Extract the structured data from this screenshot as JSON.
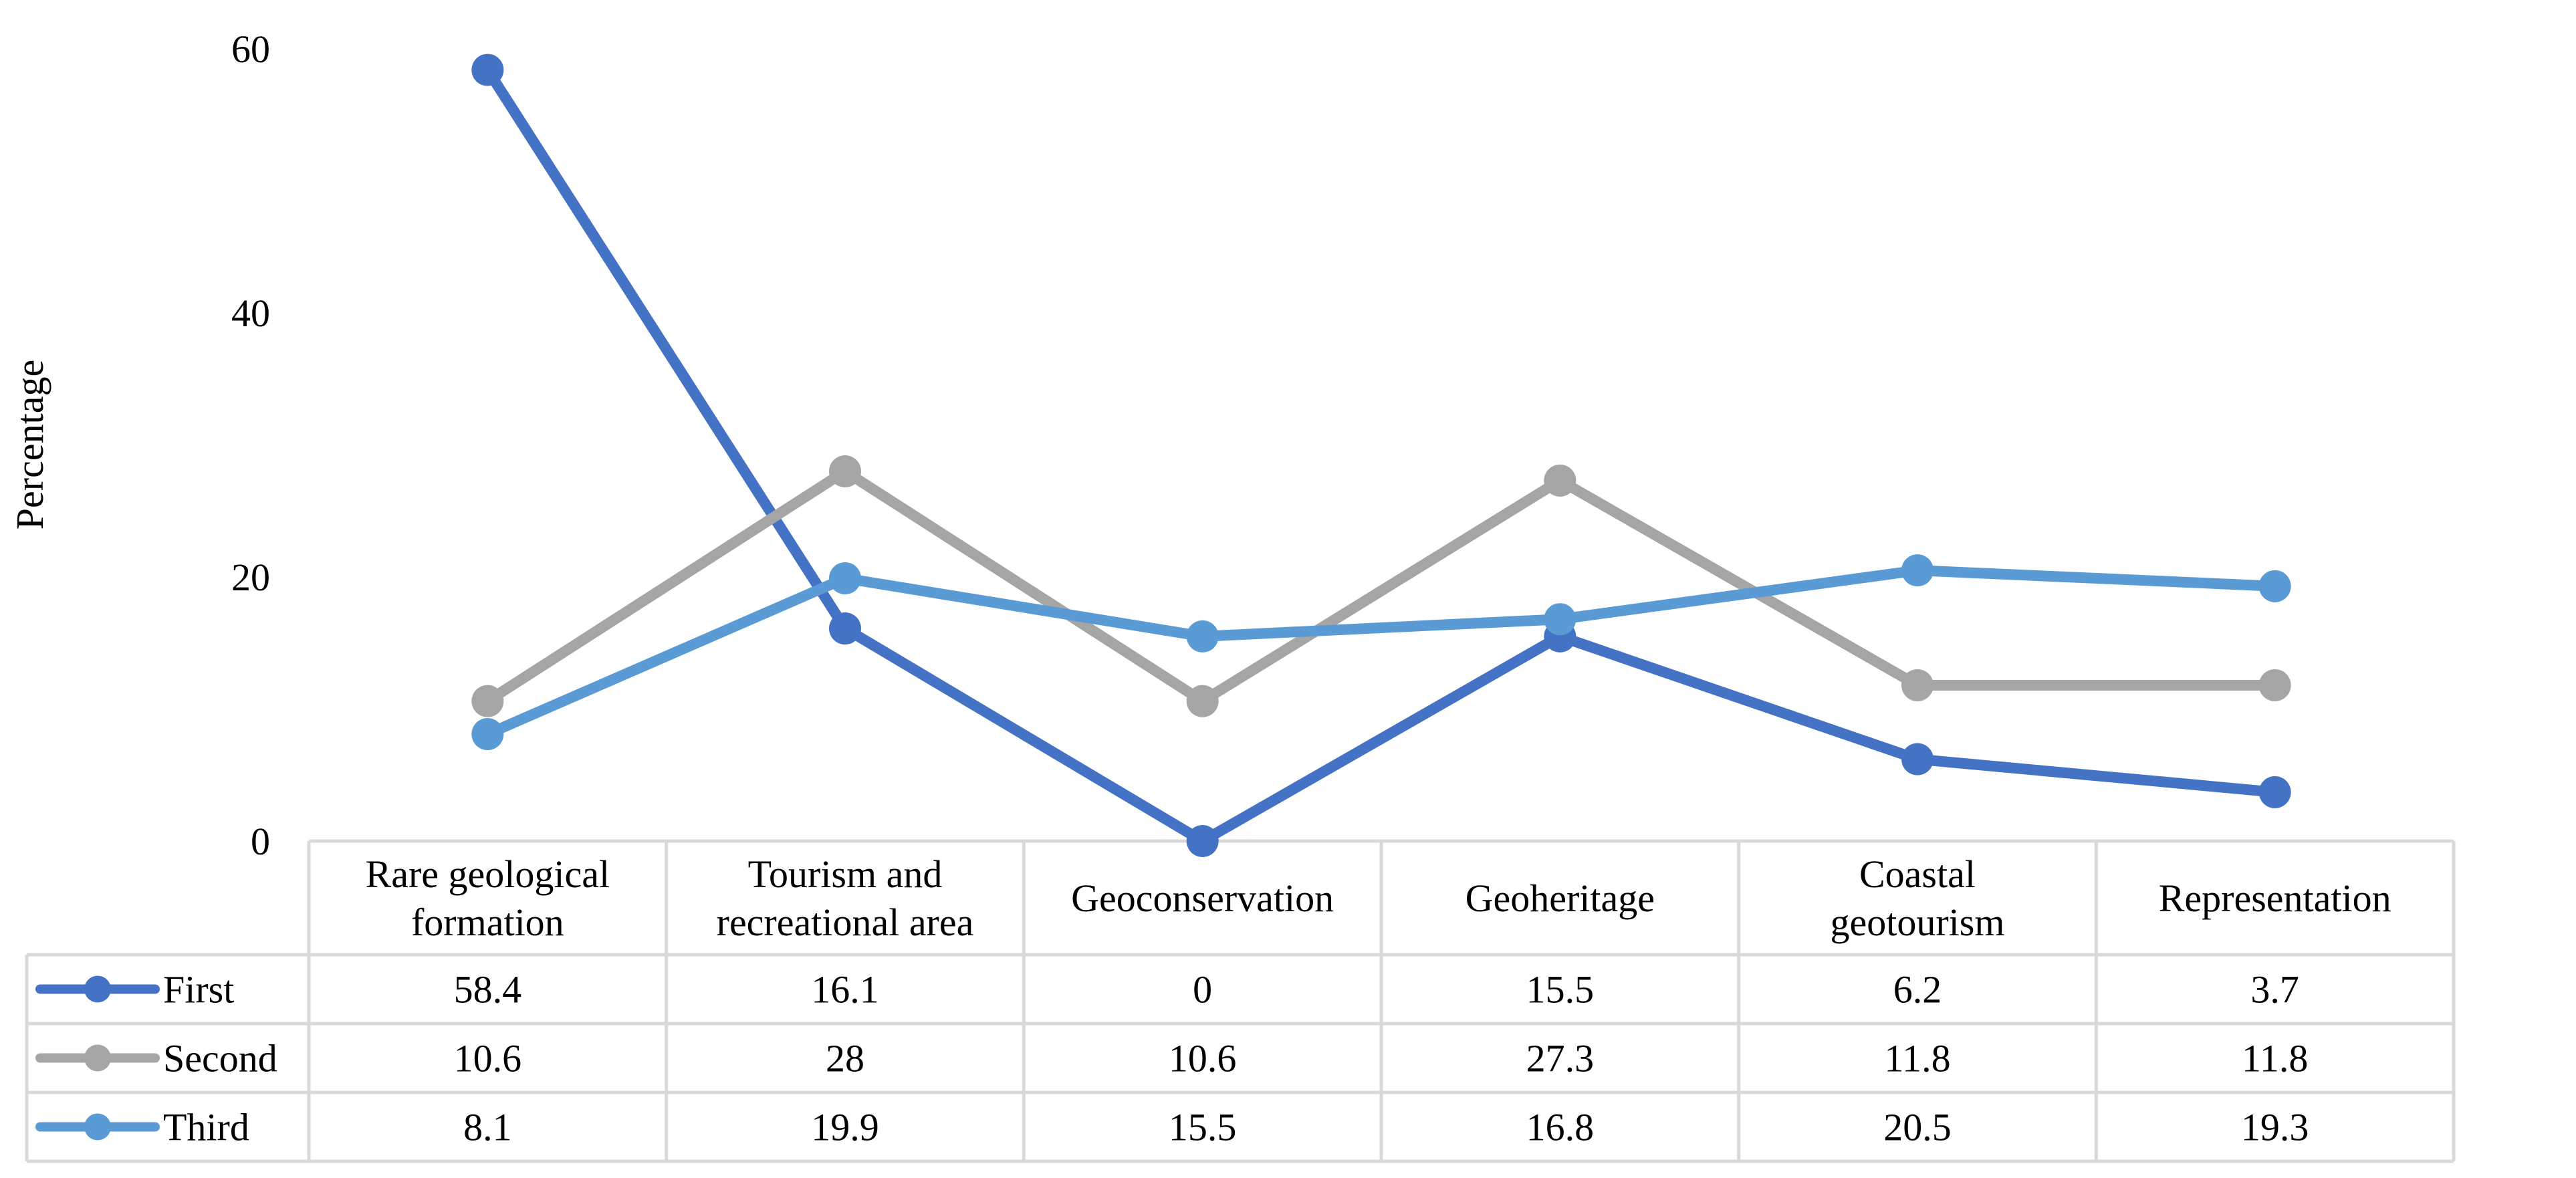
{
  "chart_data": {
    "type": "line",
    "title": "",
    "xlabel": "",
    "ylabel": "Percentage",
    "ylim": [
      0,
      60
    ],
    "yticks": [
      "0",
      "20",
      "40",
      "60"
    ],
    "categories": [
      [
        "Rare geological",
        "formation"
      ],
      [
        "Tourism and",
        "recreational area"
      ],
      [
        "Geoconservation"
      ],
      [
        "Geoheritage"
      ],
      [
        "Coastal",
        "geotourism"
      ],
      [
        "Representation"
      ]
    ],
    "series": [
      {
        "name": "First",
        "color": "#4472c4",
        "values": [
          58.4,
          16.1,
          0,
          15.5,
          6.2,
          3.7
        ],
        "labels": [
          "58.4",
          "16.1",
          "0",
          "15.5",
          "6.2",
          "3.7"
        ]
      },
      {
        "name": "Second",
        "color": "#a5a5a5",
        "values": [
          10.6,
          28,
          10.6,
          27.3,
          11.8,
          11.8
        ],
        "labels": [
          "10.6",
          "28",
          "10.6",
          "27.3",
          "11.8",
          "11.8"
        ]
      },
      {
        "name": "Third",
        "color": "#5b9bd5",
        "values": [
          8.1,
          19.9,
          15.5,
          16.8,
          20.5,
          19.3
        ],
        "labels": [
          "8.1",
          "19.9",
          "15.5",
          "16.8",
          "20.5",
          "19.3"
        ]
      }
    ],
    "grid": false,
    "legend": "data-table"
  }
}
